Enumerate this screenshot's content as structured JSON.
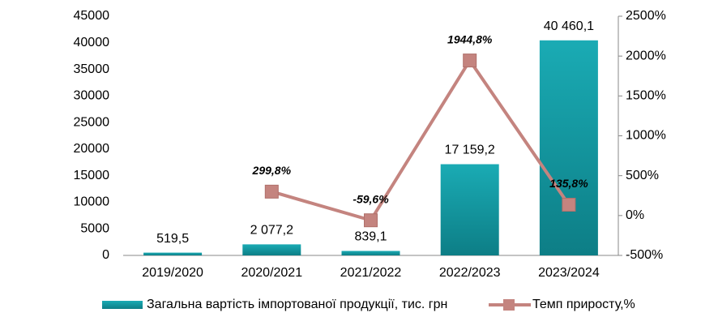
{
  "chart_data": {
    "type": "bar",
    "categories": [
      "2019/2020",
      "2020/2021",
      "2021/2022",
      "2022/2023",
      "2023/2024"
    ],
    "series": [
      {
        "name": "Загальна вартість імпортованої продукції, тис. грн",
        "type": "bar",
        "color": "#16a0a9",
        "values": [
          519.5,
          2077.2,
          839.1,
          17159.2,
          40460.1
        ],
        "value_labels": [
          "519,5",
          "2 077,2",
          "839,1",
          "17 159,2",
          "40 460,1"
        ]
      },
      {
        "name": "Темп приросту,%",
        "type": "line",
        "axis": "y2",
        "color": "#c4847f",
        "values": [
          null,
          299.8,
          -59.6,
          1944.8,
          135.8
        ],
        "value_labels": [
          null,
          "299,8%",
          "-59,6%",
          "1944,8%",
          "135,8%"
        ]
      }
    ],
    "ylim": [
      0,
      45000
    ],
    "yticks": [
      0,
      5000,
      10000,
      15000,
      20000,
      25000,
      30000,
      35000,
      40000,
      45000
    ],
    "y2lim": [
      -500,
      2500
    ],
    "y2ticks": [
      {
        "value": -500,
        "label": "-500%"
      },
      {
        "value": 0,
        "label": "0%"
      },
      {
        "value": 500,
        "label": "500%"
      },
      {
        "value": 1000,
        "label": "1000%"
      },
      {
        "value": 1500,
        "label": "1500%"
      },
      {
        "value": 2000,
        "label": "2000%"
      },
      {
        "value": 2500,
        "label": "2500%"
      }
    ],
    "legend": "bottom"
  }
}
